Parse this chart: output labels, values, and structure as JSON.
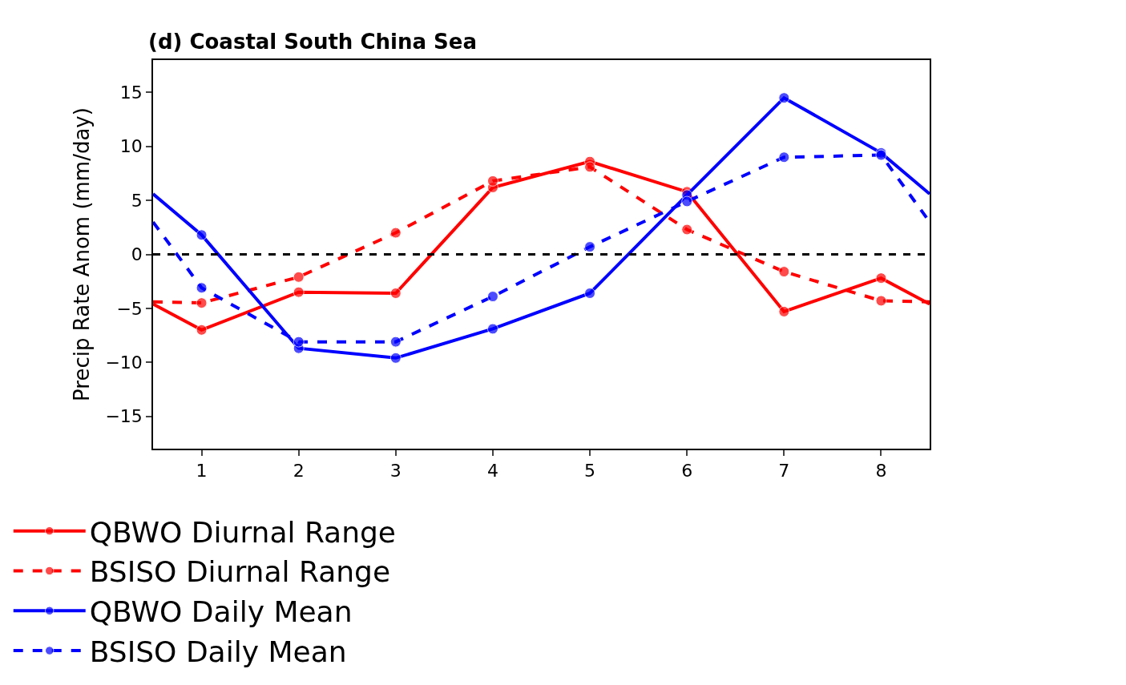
{
  "chart_data": {
    "type": "line",
    "title": "(d) Coastal South China Sea",
    "ylabel": "Precip Rate Anom (mm/day)",
    "x": [
      0.5,
      1,
      2,
      3,
      4,
      5,
      6,
      7,
      8,
      8.5
    ],
    "series": [
      {
        "name": "QBWO Diurnal Range",
        "color": "#ff0000",
        "line_style": "solid",
        "values": [
          -4.6,
          -7.0,
          -3.5,
          -3.6,
          6.2,
          8.6,
          5.8,
          -5.3,
          -2.2,
          -4.6
        ]
      },
      {
        "name": "BSISO Diurnal Range",
        "color": "#ff0000",
        "line_style": "dashed",
        "values": [
          -4.4,
          -4.5,
          -2.1,
          2.0,
          6.8,
          8.1,
          2.3,
          -1.6,
          -4.3,
          -4.4
        ]
      },
      {
        "name": "QBWO Daily Mean",
        "color": "#0000ff",
        "line_style": "solid",
        "values": [
          5.6,
          1.8,
          -8.7,
          -9.6,
          -6.9,
          -3.6,
          5.5,
          14.5,
          9.4,
          5.6
        ]
      },
      {
        "name": "BSISO Daily Mean",
        "color": "#0000ff",
        "line_style": "dashed",
        "values": [
          3.0,
          -3.1,
          -8.1,
          -8.1,
          -3.9,
          0.7,
          4.9,
          9.0,
          9.2,
          3.0
        ]
      }
    ],
    "xlim": [
      0.5,
      8.5
    ],
    "xticks": [
      1,
      2,
      3,
      4,
      5,
      6,
      7,
      8
    ],
    "ylim": [
      -18,
      18
    ],
    "yticks": [
      {
        "value": -15,
        "label": "−15"
      },
      {
        "value": -10,
        "label": "−10"
      },
      {
        "value": -5,
        "label": "−5"
      },
      0,
      5,
      10,
      15
    ],
    "ref_lines": [
      {
        "axis": "y",
        "value": 0,
        "color": "#000000",
        "line_style": "dashed"
      }
    ],
    "marker": "circle",
    "grid": false,
    "legend": "bottom"
  }
}
